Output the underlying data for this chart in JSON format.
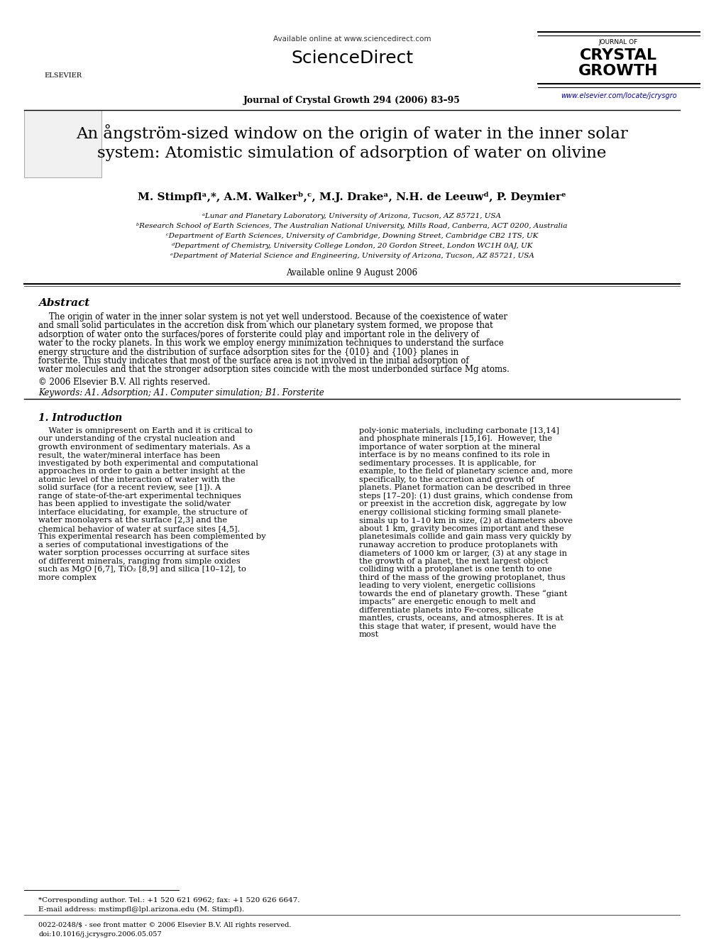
{
  "bg_color": "#ffffff",
  "header": {
    "available_online": "Available online at www.sciencedirect.com",
    "journal_line": "Journal of Crystal Growth 294 (2006) 83–95",
    "url": "www.elsevier.com/locate/jcrysgro",
    "journal_name_line1": "JOURNAL OF",
    "journal_name_bold1": "CRYSTAL",
    "journal_name_bold2": "GROWTH"
  },
  "title": "An ångström-sized window on the origin of water in the inner solar\nsystem: Atomistic simulation of adsorption of water on olivine",
  "authors": "M. Stimpflᵃ,*, A.M. Walkerᵇ,ᶜ, M.J. Drakeᵃ, N.H. de Leeuwᵈ, P. Deymierᵉ",
  "affiliations": [
    "ᵃLunar and Planetary Laboratory, University of Arizona, Tucson, AZ 85721, USA",
    "ᵇResearch School of Earth Sciences, The Australian National University, Mills Road, Canberra, ACT 0200, Australia",
    "ᶜDepartment of Earth Sciences, University of Cambridge, Downing Street, Cambridge CB2 1TS, UK",
    "ᵈDepartment of Chemistry, University College London, 20 Gordon Street, London WC1H 0AJ, UK",
    "ᵉDepartment of Material Science and Engineering, University of Arizona, Tucson, AZ 85721, USA"
  ],
  "available_online_date": "Available online 9 August 2006",
  "abstract_title": "Abstract",
  "abstract_text": "The origin of water in the inner solar system is not yet well understood. Because of the coexistence of water and small solid particulates in the accretion disk from which our planetary system formed, we propose that adsorption of water onto the surfaces/pores of forsterite could play and important role in the delivery of water to the rocky planets. In this work we employ energy minimization techniques to understand the surface energy structure and the distribution of surface adsorption sites for the {010} and {100} planes in forsterite. This study indicates that most of the surface area is not involved in the initial adsorption of water molecules and that the stronger adsorption sites coincide with the most underbonded surface Mg atoms.",
  "copyright": "© 2006 Elsevier B.V. All rights reserved.",
  "keywords": "Keywords: A1. Adsorption; A1. Computer simulation; B1. Forsterite",
  "section1_title": "1. Introduction",
  "section1_left": "Water is omnipresent on Earth and it is critical to our understanding of the crystal nucleation and growth environment of sedimentary materials. As a result, the water/mineral interface has been investigated by both experimental and computational approaches in order to gain a better insight at the atomic level of the interaction of water with the solid surface (for a recent review, see [1]). A range of state-of-the-art experimental techniques has been applied to investigate the solid/water interface elucidating, for example, the structure of water monolayers at the surface [2,3] and the chemical behavior of water at surface sites [4,5]. This experimental research has been complemented by a series of computational investigations of the water sorption processes occurring at surface sites of different minerals, ranging from simple oxides such as MgO [6,7], TiO₂ [8,9] and silica [10–12], to more complex",
  "section1_right": "poly-ionic materials, including carbonate [13,14] and phosphate minerals [15,16].\n\nHowever, the importance of water sorption at the mineral interface is by no means confined to its role in sedimentary processes. It is applicable, for example, to the field of planetary science and, more specifically, to the accretion and growth of planets. Planet formation can be described in three steps [17–20]: (1) dust grains, which condense from or preexist in the accretion disk, aggregate by low energy collisional sticking forming small planete-simals up to 1–10 km in size, (2) at diameters above about 1 km, gravity becomes important and these planetesimals collide and gain mass very quickly by runaway accretion to produce protoplanets with diameters of 1000 km or larger, (3) at any stage in the growth of a planet, the next largest object colliding with a protoplanet is one tenth to one third of the mass of the growing protoplanet, thus leading to very violent, energetic collisions towards the end of planetary growth. These “giant impacts” are energetic enough to melt and differentiate planets into Fe-cores, silicate mantles, crusts, oceans, and atmospheres. It is at this stage that water, if present, would have the most",
  "footnote_star": "*Corresponding author. Tel.: +1 520 621 6962; fax: +1 520 626 6647.",
  "footnote_email": "E-mail address: mstimpfl@lpl.arizona.edu (M. Stimpfl).",
  "footer_issn": "0022-0248/$ - see front matter © 2006 Elsevier B.V. All rights reserved.",
  "footer_doi": "doi:10.1016/j.jcrysgro.2006.05.057"
}
